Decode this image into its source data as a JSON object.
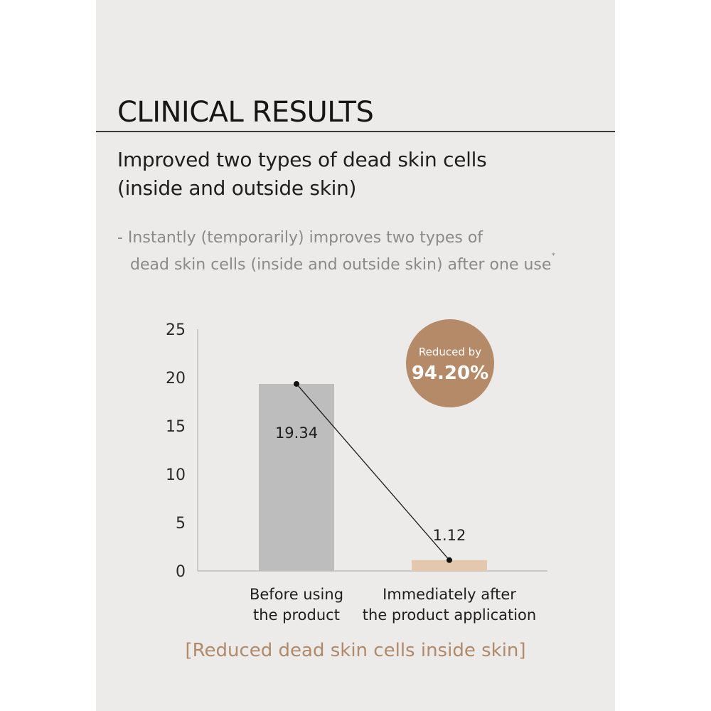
{
  "heading": "CLINICAL RESULTS",
  "subtitle": {
    "line1": "Improved two types of dead skin cells",
    "line2": "(inside and outside skin)"
  },
  "note": {
    "line1": "- Instantly (temporarily) improves two types of",
    "line2": "dead skin cells (inside and outside skin) after one use",
    "marker": "*"
  },
  "badge": {
    "line1": "Reduced by",
    "line2": "94.20%"
  },
  "caption": "[Reduced dead skin cells inside skin]",
  "colors": {
    "background": "#ecebea",
    "bar_before": "#bdbdbd",
    "bar_after": "#e3c8ad",
    "badge": "#b58a68",
    "caption": "#b08a6a"
  },
  "chart_data": {
    "type": "bar",
    "categories": [
      [
        "Before using",
        "the product"
      ],
      [
        "Immediately after",
        "the product application"
      ]
    ],
    "values": [
      19.34,
      1.12
    ],
    "value_labels": [
      "19.34",
      "1.12"
    ],
    "ylim": [
      0,
      25
    ],
    "yticks": [
      0,
      5,
      10,
      15,
      20,
      25
    ],
    "grid": false,
    "connector_line": true,
    "title": "",
    "xlabel": "",
    "ylabel": ""
  }
}
